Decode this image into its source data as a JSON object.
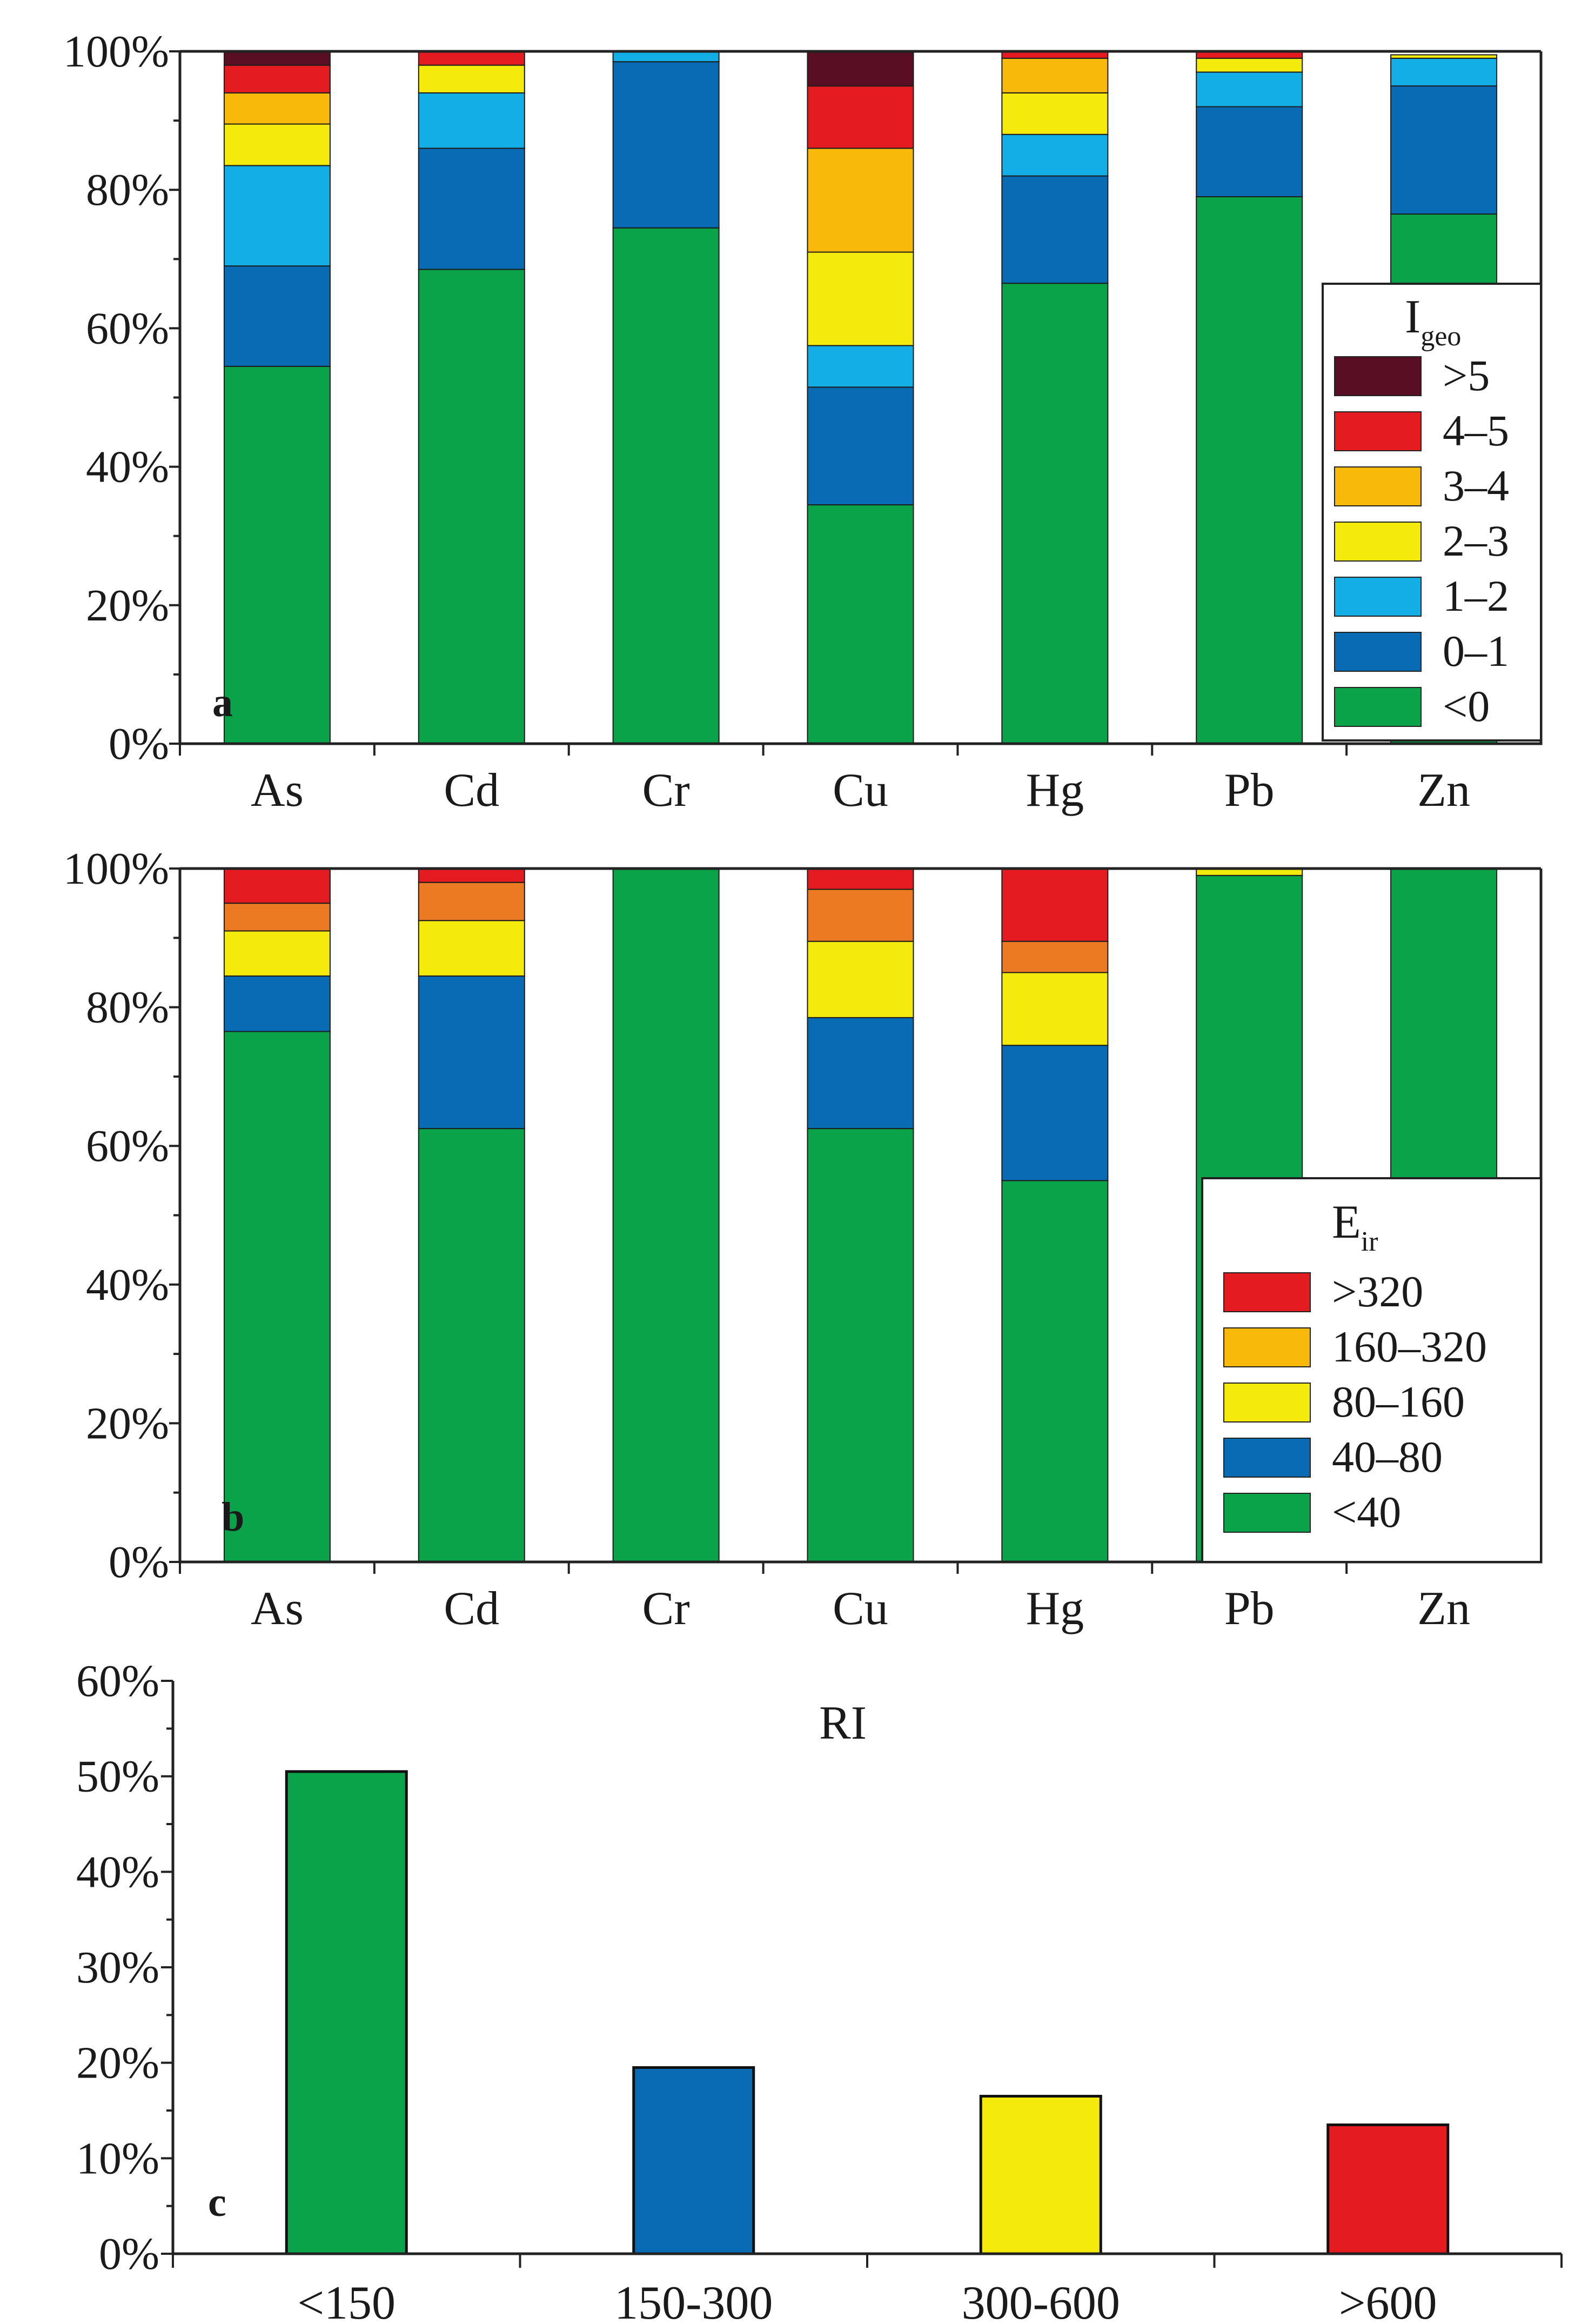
{
  "chart_data": [
    {
      "panel": "a",
      "type": "bar",
      "stacked": true,
      "categories": [
        "As",
        "Cd",
        "Cr",
        "Cu",
        "Hg",
        "Pb",
        "Zn"
      ],
      "yticks": [
        "0%",
        "20%",
        "40%",
        "60%",
        "80%",
        "100%"
      ],
      "ylim": [
        0,
        100
      ],
      "legend_title": "I",
      "legend_title_sub": "geo",
      "legend_position": "right",
      "series": [
        {
          "name": "<0",
          "color": "#0aa34a",
          "values": [
            54.5,
            68.5,
            74.5,
            34.5,
            66.5,
            79,
            76.5
          ]
        },
        {
          "name": "0–1",
          "color": "#0a6bb5",
          "values": [
            14.5,
            17.5,
            24,
            17,
            15.5,
            13,
            18.5
          ]
        },
        {
          "name": "1–2",
          "color": "#14aee6",
          "values": [
            14.5,
            8,
            1.5,
            6,
            6,
            5,
            4
          ]
        },
        {
          "name": "2–3",
          "color": "#f4ea0c",
          "values": [
            6,
            4,
            0,
            13.5,
            6,
            2,
            0.5
          ]
        },
        {
          "name": "3–4",
          "color": "#f8b90a",
          "values": [
            4.5,
            0,
            0,
            15,
            5,
            0,
            0
          ]
        },
        {
          "name": "4–5",
          "color": "#e41c22",
          "values": [
            4,
            2,
            0,
            9,
            1,
            1,
            0
          ]
        },
        {
          "name": ">5",
          "color": "#5a0e24",
          "values": [
            2,
            0,
            0,
            5,
            0,
            0,
            0
          ]
        }
      ]
    },
    {
      "panel": "b",
      "type": "bar",
      "stacked": true,
      "categories": [
        "As",
        "Cd",
        "Cr",
        "Cu",
        "Hg",
        "Pb",
        "Zn"
      ],
      "yticks": [
        "0%",
        "20%",
        "40%",
        "60%",
        "80%",
        "100%"
      ],
      "ylim": [
        0,
        100
      ],
      "legend_title": "E",
      "legend_title_sub": "ir",
      "legend_position": "right",
      "series": [
        {
          "name": "<40",
          "color": "#0aa34a",
          "values": [
            76.5,
            62.5,
            100,
            62.5,
            55,
            99,
            100
          ]
        },
        {
          "name": "40–80",
          "color": "#0a6bb5",
          "values": [
            8,
            22,
            0,
            16,
            19.5,
            0,
            0
          ]
        },
        {
          "name": "80–160",
          "color": "#f4ea0c",
          "values": [
            6.5,
            8,
            0,
            11,
            10.5,
            1,
            0
          ]
        },
        {
          "name": "160–320",
          "color": "#ec7a22",
          "values": [
            4,
            5.5,
            0,
            7.5,
            4.5,
            0,
            0
          ]
        },
        {
          "name": ">320",
          "color": "#e41c22",
          "values": [
            5,
            2,
            0,
            3,
            10.5,
            0,
            0
          ]
        }
      ],
      "legend_swatch_colors": [
        "#e41c22",
        "#f8b90a",
        "#f4ea0c",
        "#0a6bb5",
        "#0aa34a"
      ]
    },
    {
      "panel": "c",
      "type": "bar",
      "title": "RI",
      "categories": [
        "<150",
        "150-300",
        "300-600",
        ">600"
      ],
      "values": [
        50.5,
        19.5,
        16.5,
        13.5
      ],
      "colors": [
        "#0aa34a",
        "#0a6bb5",
        "#f4ea0c",
        "#e41c22"
      ],
      "yticks": [
        "0%",
        "10%",
        "20%",
        "30%",
        "40%",
        "50%",
        "60%"
      ],
      "ylim": [
        0,
        60
      ]
    }
  ]
}
